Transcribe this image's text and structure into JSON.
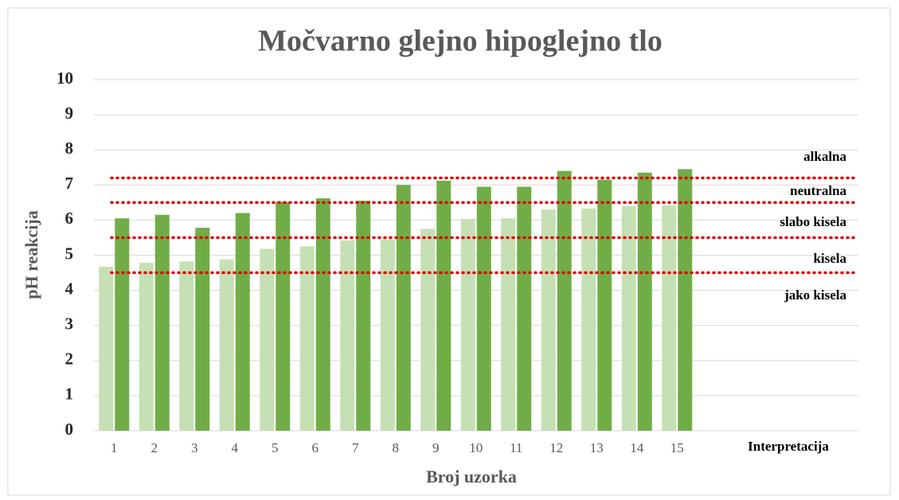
{
  "chart_data": {
    "type": "bar",
    "title": "Močvarno glejno hipoglejno tlo",
    "x_label": "Broj uzorka",
    "y_label": "pH reakcija",
    "categories": [
      "1",
      "2",
      "3",
      "4",
      "5",
      "6",
      "7",
      "8",
      "9",
      "10",
      "11",
      "12",
      "13",
      "14",
      "15"
    ],
    "series": [
      {
        "color": "#c5e0b4",
        "values": [
          4.67,
          4.78,
          4.82,
          4.88,
          5.18,
          5.25,
          5.42,
          5.45,
          5.75,
          6.03,
          6.05,
          6.3,
          6.33,
          6.4,
          6.42
        ]
      },
      {
        "color": "#70ad47",
        "values": [
          6.05,
          6.15,
          5.78,
          6.2,
          6.52,
          6.62,
          6.55,
          7.0,
          7.12,
          6.95,
          6.95,
          7.4,
          7.15,
          7.35,
          7.45
        ]
      }
    ],
    "reference_lines": {
      "color": "#e00000",
      "values": [
        7.2,
        6.5,
        5.5,
        4.5
      ]
    },
    "annotations": [
      "alkalna",
      "neutralna",
      "slabo kisela",
      "kisela",
      "jako kisela"
    ],
    "x_annotation": "Interpretacija",
    "ylim": [
      0,
      10
    ],
    "yticks": [
      0,
      1,
      2,
      3,
      4,
      5,
      6,
      7,
      8,
      9,
      10
    ],
    "grid": true
  }
}
